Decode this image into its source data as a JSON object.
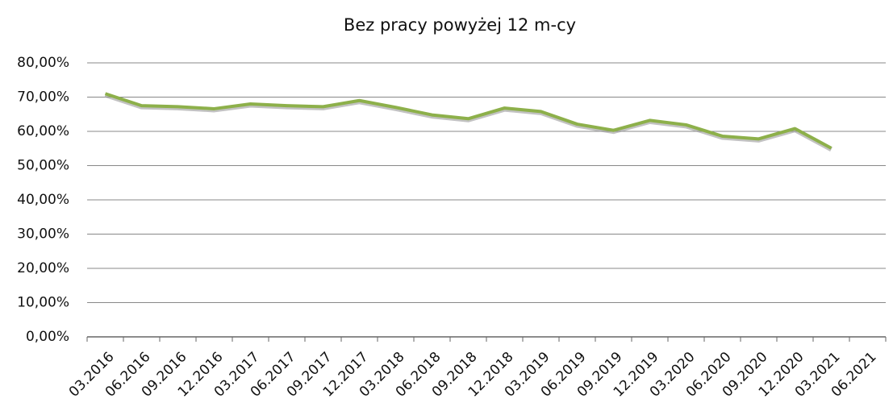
{
  "chart_data": {
    "type": "line",
    "title": "Bez pracy powyżej 12 m-cy",
    "categories": [
      "03.2016",
      "06.2016",
      "09.2016",
      "12.2016",
      "03.2017",
      "06.2017",
      "09.2017",
      "12.2017",
      "03.2018",
      "06.2018",
      "09.2018",
      "12.2018",
      "03.2019",
      "06.2019",
      "09.2019",
      "12.2019",
      "03.2020",
      "06.2020",
      "09.2020",
      "12.2020",
      "03.2021",
      "06.2021"
    ],
    "series": [
      {
        "name": "Bez pracy powyżej 12 m-cy",
        "color": "#8db04a",
        "values": [
          71,
          67.5,
          67.2,
          66.6,
          68,
          67.5,
          67.2,
          69,
          67,
          64.8,
          63.7,
          66.8,
          65.8,
          62.1,
          60.3,
          63.2,
          61.9,
          58.6,
          57.8,
          60.8,
          55.1,
          null
        ]
      }
    ],
    "ylim": [
      0,
      80
    ],
    "yticks": [
      {
        "value": 0,
        "label": "0,00%"
      },
      {
        "value": 10,
        "label": "10,00%"
      },
      {
        "value": 20,
        "label": "20,00%"
      },
      {
        "value": 30,
        "label": "30,00%"
      },
      {
        "value": 40,
        "label": "40,00%"
      },
      {
        "value": 50,
        "label": "50,00%"
      },
      {
        "value": 60,
        "label": "60,00%"
      },
      {
        "value": 70,
        "label": "70,00%"
      },
      {
        "value": 80,
        "label": "80,00%"
      }
    ],
    "grid": true
  }
}
